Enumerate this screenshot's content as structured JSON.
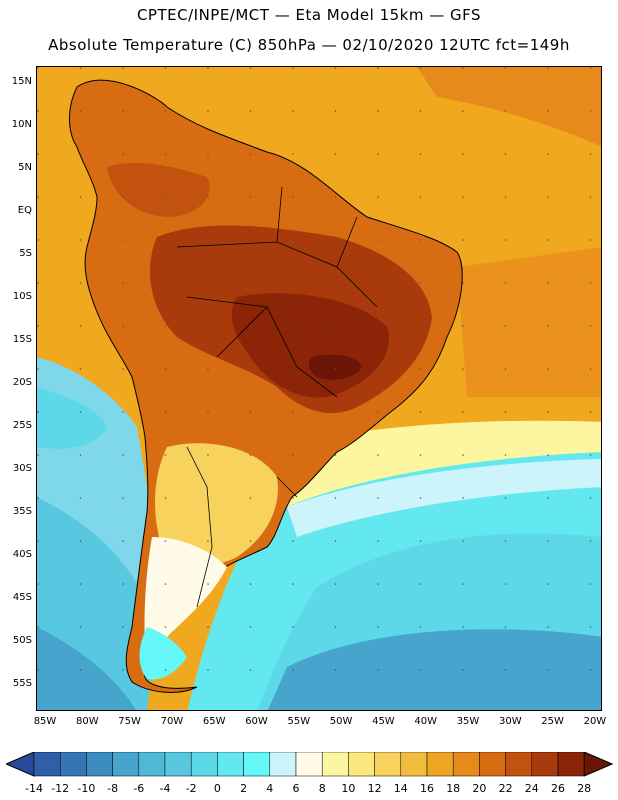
{
  "header": {
    "line1": "CPTEC/INPE/MCT —  Eta Model 15km — GFS",
    "line2": "Absolute Temperature (C) 850hPa — 02/10/2020 12UTC fct=149h"
  },
  "map": {
    "lat_labels": [
      "15N",
      "10N",
      "5N",
      "EQ",
      "5S",
      "10S",
      "15S",
      "20S",
      "25S",
      "30S",
      "35S",
      "40S",
      "45S",
      "50S",
      "55S"
    ],
    "lon_labels": [
      "85W",
      "80W",
      "75W",
      "70W",
      "65W",
      "60W",
      "55W",
      "50W",
      "45W",
      "40W",
      "35W",
      "30W",
      "25W",
      "20W"
    ],
    "ocean_color": "#f0a81e",
    "land_color": "#c86418"
  },
  "colorbar": {
    "labels": [
      "-14",
      "-12",
      "-10",
      "-8",
      "-6",
      "-4",
      "-2",
      "0",
      "2",
      "4",
      "6",
      "8",
      "10",
      "12",
      "14",
      "16",
      "18",
      "20",
      "22",
      "24",
      "26",
      "28"
    ],
    "colors": [
      "#274a9c",
      "#2e5fa8",
      "#3574b5",
      "#3d8cc0",
      "#47a4cc",
      "#4fb8d6",
      "#57c8df",
      "#5cd8e8",
      "#62e8f0",
      "#64f8f8",
      "#ccf4fa",
      "#fffbe8",
      "#fdf6a0",
      "#fbe77c",
      "#f7d25c",
      "#f2bd3c",
      "#eea523",
      "#e8891c",
      "#d86c13",
      "#c4520f",
      "#a83a0b",
      "#8c2408",
      "#6a1506"
    ]
  }
}
